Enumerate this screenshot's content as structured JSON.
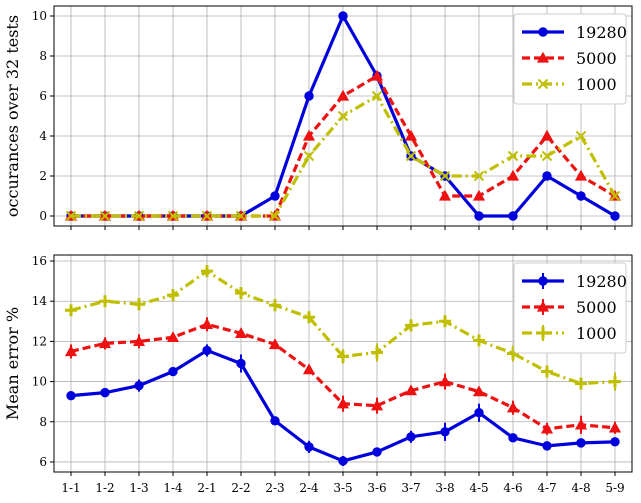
{
  "chart_data": [
    {
      "type": "line",
      "ylabel": "occurances over 32 tests",
      "xlabel": "",
      "ylim": [
        -0.5,
        10.5
      ],
      "yticks": [
        0,
        2,
        4,
        6,
        8,
        10
      ],
      "grid": true,
      "legend_position": "top-right",
      "x": [
        "1-1",
        "1-2",
        "1-3",
        "1-4",
        "2-1",
        "2-2",
        "2-3",
        "2-4",
        "3-5",
        "3-6",
        "3-7",
        "3-8",
        "4-5",
        "4-6",
        "4-7",
        "4-8",
        "5-9"
      ],
      "show_xtick_labels": false,
      "series": [
        {
          "name": "19280",
          "color": "#0000dd",
          "marker": "circle",
          "dash": "solid",
          "values": [
            0,
            0,
            0,
            0,
            0,
            0,
            1,
            6,
            10,
            7,
            3,
            2,
            0,
            0,
            2,
            1,
            0
          ]
        },
        {
          "name": "5000",
          "color": "#ee1111",
          "marker": "triangle",
          "dash": "dashed",
          "values": [
            0,
            0,
            0,
            0,
            0,
            0,
            0,
            4,
            6,
            7,
            4,
            1,
            1,
            2,
            4,
            2,
            1
          ]
        },
        {
          "name": "1000",
          "color": "#bfbf00",
          "marker": "x",
          "dash": "dashdot",
          "values": [
            0,
            0,
            0,
            0,
            0,
            0,
            0,
            3,
            5,
            6,
            3,
            2,
            2,
            3,
            3,
            4,
            1
          ]
        }
      ]
    },
    {
      "type": "line",
      "ylabel": "Mean error %",
      "xlabel": "",
      "ylim": [
        5.5,
        16.3
      ],
      "yticks": [
        6,
        8,
        10,
        12,
        14,
        16
      ],
      "grid": true,
      "legend_position": "top-right",
      "x": [
        "1-1",
        "1-2",
        "1-3",
        "1-4",
        "2-1",
        "2-2",
        "2-3",
        "2-4",
        "3-5",
        "3-6",
        "3-7",
        "3-8",
        "4-5",
        "4-6",
        "4-7",
        "4-8",
        "5-9"
      ],
      "show_xtick_labels": true,
      "series": [
        {
          "name": "19280",
          "color": "#0000dd",
          "marker": "circle",
          "dash": "solid",
          "values": [
            9.3,
            9.45,
            9.8,
            10.5,
            11.55,
            10.9,
            8.05,
            6.75,
            6.05,
            6.5,
            7.25,
            7.5,
            8.45,
            7.2,
            6.8,
            6.95,
            7.0
          ],
          "errors": [
            0.1,
            0.15,
            0.3,
            0.15,
            0.3,
            0.45,
            0.2,
            0.3,
            0.25,
            0.15,
            0.3,
            0.45,
            0.45,
            0.15,
            0.2,
            0.15,
            0.2
          ]
        },
        {
          "name": "5000",
          "color": "#ee1111",
          "marker": "triangle",
          "dash": "dashed",
          "values": [
            11.5,
            11.9,
            12.0,
            12.2,
            12.85,
            12.4,
            11.85,
            10.6,
            8.9,
            8.8,
            9.55,
            10.0,
            9.5,
            8.7,
            7.65,
            7.85,
            7.7
          ],
          "errors": [
            0.35,
            0.3,
            0.35,
            0.2,
            0.35,
            0.2,
            0.15,
            0.2,
            0.4,
            0.4,
            0.2,
            0.4,
            0.2,
            0.35,
            0.3,
            0.45,
            0.3
          ]
        },
        {
          "name": "1000",
          "color": "#bfbf00",
          "marker": "plus",
          "dash": "dashdot",
          "values": [
            13.55,
            14.0,
            13.85,
            14.3,
            15.5,
            14.4,
            13.8,
            13.2,
            11.25,
            11.45,
            12.8,
            13.0,
            12.05,
            11.4,
            10.5,
            9.9,
            10.0
          ],
          "errors": [
            0.25,
            0.2,
            0.3,
            0.2,
            0.3,
            0.25,
            0.2,
            0.2,
            0.35,
            0.45,
            0.3,
            0.2,
            0.25,
            0.4,
            0.25,
            0.2,
            0.45
          ]
        }
      ]
    }
  ]
}
